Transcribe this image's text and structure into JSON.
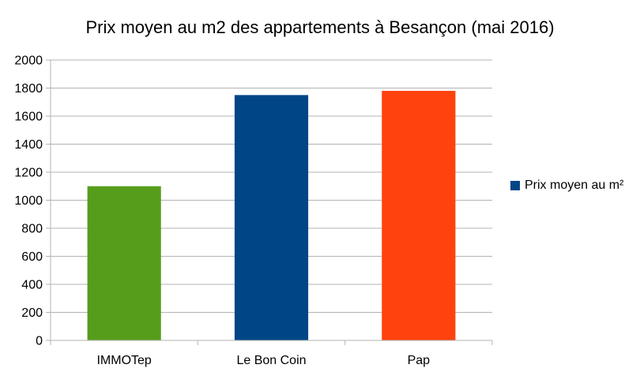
{
  "chart_data": {
    "type": "bar",
    "title": "Prix moyen au m2 des appartements à Besançon (mai 2016)",
    "categories": [
      "IMMOTep",
      "Le Bon Coin",
      "Pap"
    ],
    "series": [
      {
        "name": "Prix moyen au m²",
        "values": [
          1100,
          1750,
          1780
        ]
      }
    ],
    "bar_colors": [
      "#579d1c",
      "#004586",
      "#ff420e"
    ],
    "legend_color": "#004586",
    "ylim": [
      0,
      2000
    ],
    "yticks": [
      "0",
      "200",
      "400",
      "600",
      "800",
      "1000",
      "1200",
      "1400",
      "1600",
      "1800",
      "2000"
    ],
    "grid": true,
    "legend_position": "right"
  }
}
